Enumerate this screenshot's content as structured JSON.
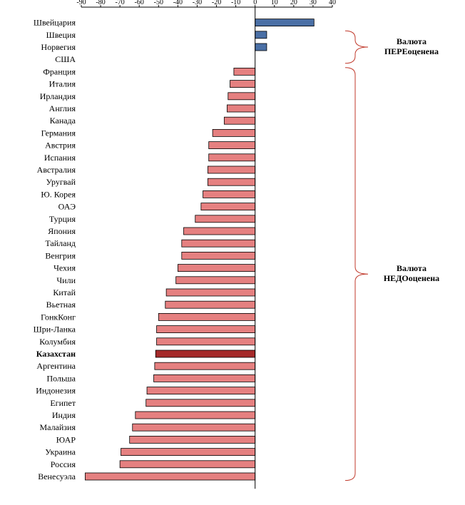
{
  "chart_data": {
    "type": "bar",
    "orientation": "horizontal",
    "title": "",
    "xlabel": "",
    "ylabel": "",
    "xlim": [
      -90,
      40
    ],
    "xticks": [
      -90,
      -80,
      -70,
      -60,
      -50,
      -40,
      -30,
      -20,
      -10,
      0,
      10,
      20,
      30,
      40
    ],
    "grid": false,
    "categories": [
      "Швейцария",
      "Швеция",
      "Норвегия",
      "США",
      "Франция",
      "Италия",
      "Ирландия",
      "Англия",
      "Канада",
      "Германия",
      "Австрия",
      "Испания",
      "Австралия",
      "Уругвай",
      "Ю. Корея",
      "ОАЭ",
      "Турция",
      "Япония",
      "Тайланд",
      "Венгрия",
      "Чехия",
      "Чили",
      "Китай",
      "Вьетная",
      "ГонкКонг",
      "Шри-Ланка",
      "Колумбия",
      "Казахстан",
      "Аргентина",
      "Польша",
      "Индонезия",
      "Египет",
      "Индия",
      "Малайзия",
      "ЮАР",
      "Украина",
      "Россия",
      "Венесуэла"
    ],
    "values": [
      30.5,
      6,
      6,
      0,
      -11,
      -13,
      -14,
      -14.5,
      -16,
      -22,
      -24,
      -24,
      -24.5,
      -24.5,
      -27,
      -28,
      -31,
      -37,
      -38,
      -38,
      -40,
      -41,
      -46,
      -46.5,
      -50,
      -51,
      -51,
      -51.5,
      -52,
      -52.5,
      -56,
      -56.5,
      -62,
      -63.5,
      -65,
      -69.5,
      -70,
      -88
    ],
    "highlight_category": "Казахстан",
    "colors": {
      "overvalued": "#4a6fa5",
      "undervalued": "#e58080",
      "highlight": "#a52a2a",
      "outline": "#000000",
      "brace": "#c0392b"
    },
    "annotations": [
      {
        "group": "overvalued",
        "lines": [
          "Валюта",
          "ПЕРЕоценена"
        ],
        "from_category": "Швеция",
        "to_category": "США"
      },
      {
        "group": "undervalued",
        "lines": [
          "Валюта",
          "НЕДОоценена"
        ],
        "from_category": "Франция",
        "to_category": "Венесуэла"
      }
    ]
  }
}
